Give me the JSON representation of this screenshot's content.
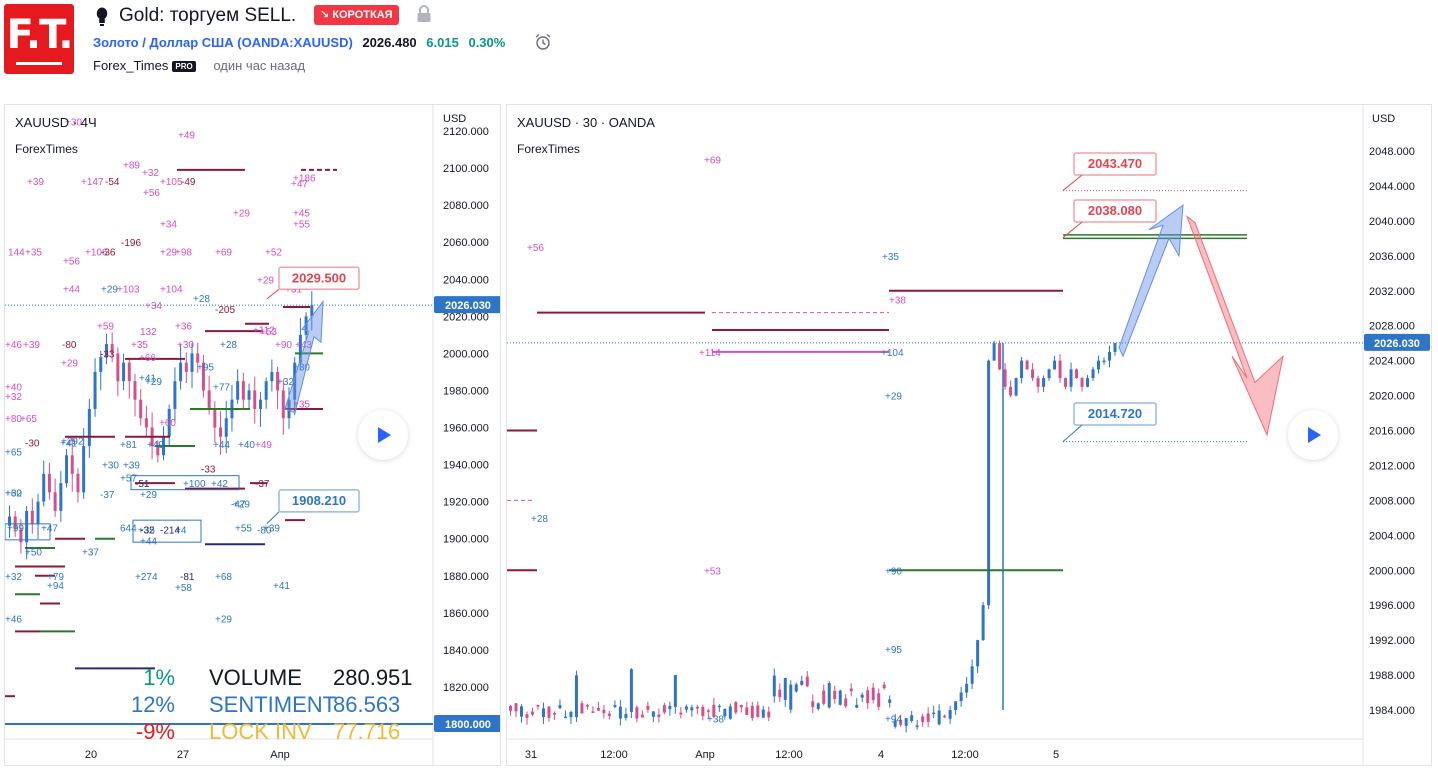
{
  "header": {
    "title": "Gold: торгуем SELL.",
    "badge": "↘ КОРОТКАЯ",
    "symbol_name": "Золото / Доллар США",
    "symbol_code_open": " (",
    "symbol_code": "OANDA:XAUUSD",
    "symbol_code_close": ")",
    "price": "2026.480",
    "change": "6.015",
    "change_pct": "0.30%",
    "author": "Forex_Times",
    "author_badge": "PRO",
    "time_ago": "один час назад",
    "logo_text": "F.T.",
    "icons": [
      "lightbulb-icon",
      "lock-icon",
      "alarm-clock-icon",
      "play-icon"
    ],
    "colors": {
      "brand": "#e5191e",
      "badge": "#f23645",
      "link": "#2962ff",
      "positive": "#089981"
    }
  },
  "stats": {
    "rows": [
      {
        "pct": "1%",
        "label": "VOLUME",
        "value": "280.951",
        "color": "#089981",
        "label_color": "#131722"
      },
      {
        "pct": "12%",
        "label": "SENTIMENT",
        "value": "86.563",
        "color": "#2f75c7",
        "label_color": "#2f75c7"
      },
      {
        "pct": "-9%",
        "label": "LOCK INV",
        "value": "77.716",
        "color": "#e5191e",
        "label_color": "#f0b93a"
      }
    ]
  },
  "chart_data": [
    {
      "type": "candlestick",
      "title": "XAUUSD · 4Ч",
      "subtitle": "ForexTimes",
      "currency": "USD",
      "y_ticks": [
        "2120.000",
        "2100.000",
        "2080.000",
        "2060.000",
        "2040.000",
        "2020.000",
        "2000.000",
        "1980.000",
        "1960.000",
        "1940.000",
        "1920.000",
        "1900.000",
        "1880.000",
        "1860.000",
        "1840.000",
        "1820.000"
      ],
      "y_range": [
        1800,
        2120
      ],
      "x_ticks": [
        "20",
        "27",
        "Апр"
      ],
      "current_price": "2026.030",
      "extra_price_tag": "1800.000",
      "price_labels": [
        {
          "text": "2029.500",
          "value": 2029.5,
          "color": "#e5444f"
        },
        {
          "text": "1908.210",
          "value": 1908.21,
          "color": "#2f75c7"
        }
      ],
      "candles_close": [
        1912,
        1905,
        1898,
        1915,
        1908,
        1920,
        1935,
        1925,
        1915,
        1930,
        1945,
        1935,
        1925,
        1950,
        1970,
        1990,
        1998,
        2005,
        2000,
        1985,
        1995,
        1985,
        1975,
        1965,
        1960,
        1950,
        1945,
        1955,
        1970,
        1985,
        1995,
        1990,
        2000,
        1995,
        1980,
        1970,
        1960,
        1955,
        1965,
        1975,
        1985,
        1975,
        1980,
        1970,
        1975,
        1985,
        1990,
        1980,
        1965,
        1975,
        1995,
        2010,
        2020,
        2026
      ],
      "markers": [
        {
          "t": "+30",
          "c": "#d44fc1"
        },
        {
          "t": "+49",
          "c": "#d44fc1"
        },
        {
          "t": "+89",
          "c": "#d44fc1"
        },
        {
          "t": "+32",
          "c": "#d44fc1"
        },
        {
          "t": "+39",
          "c": "#d44fc1"
        },
        {
          "t": "+147",
          "c": "#d44fc1"
        },
        {
          "t": "-54",
          "c": "#8b1a3a"
        },
        {
          "t": "+105",
          "c": "#d44fc1"
        },
        {
          "t": "-49",
          "c": "#8b1a3a"
        },
        {
          "t": "+56",
          "c": "#d44fc1"
        },
        {
          "t": "+186",
          "c": "#d44fc1"
        },
        {
          "t": "+47",
          "c": "#d44fc1"
        },
        {
          "t": "+29",
          "c": "#d44fc1"
        },
        {
          "t": "+45",
          "c": "#d44fc1"
        },
        {
          "t": "+55",
          "c": "#d44fc1"
        },
        {
          "t": "+34",
          "c": "#d44fc1"
        },
        {
          "t": "-196",
          "c": "#8b1a3a"
        },
        {
          "t": "144",
          "c": "#d44fc1"
        },
        {
          "t": "+35",
          "c": "#d44fc1"
        },
        {
          "t": "+106",
          "c": "#d44fc1"
        },
        {
          "t": "-36",
          "c": "#8b1a3a"
        },
        {
          "t": "+29",
          "c": "#d44fc1"
        },
        {
          "t": "+98",
          "c": "#d44fc1"
        },
        {
          "t": "+69",
          "c": "#d44fc1"
        },
        {
          "t": "+52",
          "c": "#d44fc1"
        },
        {
          "t": "+56",
          "c": "#d44fc1"
        },
        {
          "t": "+29",
          "c": "#d44fc1"
        },
        {
          "t": "+44",
          "c": "#d44fc1"
        },
        {
          "t": "+29",
          "c": "#2f75c7"
        },
        {
          "t": "+103",
          "c": "#d44fc1"
        },
        {
          "t": "+104",
          "c": "#d44fc1"
        },
        {
          "t": "+28",
          "c": "#2f75c7"
        },
        {
          "t": "+31",
          "c": "#d44fc1"
        },
        {
          "t": "+112",
          "c": "#d44fc1"
        },
        {
          "t": "+34",
          "c": "#d44fc1"
        },
        {
          "t": "+59",
          "c": "#d44fc1"
        },
        {
          "t": "+36",
          "c": "#d44fc1"
        },
        {
          "t": "-205",
          "c": "#8b1a3a"
        },
        {
          "t": "132",
          "c": "#d44fc1"
        },
        {
          "t": "+46",
          "c": "#d44fc1"
        },
        {
          "t": "+39",
          "c": "#d44fc1"
        },
        {
          "t": "-80",
          "c": "#8b1a3a"
        },
        {
          "t": "+35",
          "c": "#d44fc1"
        },
        {
          "t": "+30",
          "c": "#d44fc1"
        },
        {
          "t": "+28",
          "c": "#2f75c7"
        },
        {
          "t": "+53",
          "c": "#d44fc1"
        },
        {
          "t": "+90",
          "c": "#d44fc1"
        },
        {
          "t": "+43",
          "c": "#d44fc1"
        },
        {
          "t": "-33",
          "c": "#8b1a3a"
        },
        {
          "t": "+66",
          "c": "#d44fc1"
        },
        {
          "t": "+29",
          "c": "#d44fc1"
        },
        {
          "t": "+95",
          "c": "#2f75c7"
        },
        {
          "t": "+30",
          "c": "#2f75c7"
        },
        {
          "t": "+41",
          "c": "#2f75c7"
        },
        {
          "t": "+29",
          "c": "#2f75c7"
        },
        {
          "t": "+32",
          "c": "#2f75c7"
        },
        {
          "t": "+77",
          "c": "#2f75c7"
        },
        {
          "t": "+60",
          "c": "#d44fc1"
        },
        {
          "t": "+35",
          "c": "#d44fc1"
        },
        {
          "t": "+40",
          "c": "#d44fc1"
        },
        {
          "t": "+32",
          "c": "#d44fc1"
        },
        {
          "t": "+80",
          "c": "#d44fc1"
        },
        {
          "t": "+65",
          "c": "#d44fc1"
        },
        {
          "t": "-30",
          "c": "#8b1a3a"
        },
        {
          "t": "+41",
          "c": "#2f75c7"
        },
        {
          "t": "+81",
          "c": "#2f75c7"
        },
        {
          "t": "+49",
          "c": "#2f75c7"
        },
        {
          "t": "+44",
          "c": "#2f75c7"
        },
        {
          "t": "+40",
          "c": "#2f75c7"
        },
        {
          "t": "+49",
          "c": "#d44fc1"
        },
        {
          "t": "+65",
          "c": "#2f75c7"
        },
        {
          "t": "+30",
          "c": "#2f75c7"
        },
        {
          "t": "+39",
          "c": "#2f75c7"
        },
        {
          "t": "+57",
          "c": "#2f75c7"
        },
        {
          "t": "-33",
          "c": "#8b1a3a"
        },
        {
          "t": "+292",
          "c": "#2f75c7"
        },
        {
          "t": "-51",
          "c": "#2a2a7a"
        },
        {
          "t": "+100",
          "c": "#2f75c7"
        },
        {
          "t": "+42",
          "c": "#2f75c7"
        },
        {
          "t": "-37",
          "c": "#8b1a3a"
        },
        {
          "t": "+62",
          "c": "#2f75c7"
        },
        {
          "t": "-37",
          "c": "#2f75c7"
        },
        {
          "t": "+29",
          "c": "#2f75c7"
        },
        {
          "t": "+29",
          "c": "#2f75c7"
        },
        {
          "t": "-47",
          "c": "#2f75c7"
        },
        {
          "t": "+30",
          "c": "#2f75c7"
        },
        {
          "t": "+35",
          "c": "#2f75c7"
        },
        {
          "t": "+4",
          "c": "#2f75c7"
        },
        {
          "t": "-80",
          "c": "#2f75c7"
        },
        {
          "t": "+99",
          "c": "#2f75c7"
        },
        {
          "t": "+47",
          "c": "#2f75c7"
        },
        {
          "t": "644",
          "c": "#2f75c7"
        },
        {
          "t": "-32",
          "c": "#2a2a7a"
        },
        {
          "t": "-214",
          "c": "#2a2a7a"
        },
        {
          "t": "+55",
          "c": "#2f75c7"
        },
        {
          "t": "+39",
          "c": "#2f75c7"
        },
        {
          "t": "+44",
          "c": "#2f75c7"
        },
        {
          "t": "+50",
          "c": "#2f75c7"
        },
        {
          "t": "+37",
          "c": "#2f75c7"
        },
        {
          "t": "+32",
          "c": "#2f75c7"
        },
        {
          "t": "+79",
          "c": "#2f75c7"
        },
        {
          "t": "+94",
          "c": "#2f75c7"
        },
        {
          "t": "+274",
          "c": "#2f75c7"
        },
        {
          "t": "-81",
          "c": "#2a2a7a"
        },
        {
          "t": "+58",
          "c": "#2f75c7"
        },
        {
          "t": "+68",
          "c": "#2f75c7"
        },
        {
          "t": "+41",
          "c": "#2f75c7"
        },
        {
          "t": "+46",
          "c": "#2f75c7"
        },
        {
          "t": "+29",
          "c": "#2f75c7"
        }
      ]
    },
    {
      "type": "candlestick",
      "title": "XAUUSD · 30 · OANDA",
      "subtitle": "ForexTimes",
      "currency": "USD",
      "y_ticks": [
        "2048.000",
        "2044.000",
        "2040.000",
        "2036.000",
        "2032.000",
        "2028.000",
        "2024.000",
        "2020.000",
        "2016.000",
        "2012.000",
        "2008.000",
        "2004.000",
        "2000.000",
        "1996.000",
        "1992.000",
        "1988.000",
        "1984.000"
      ],
      "y_range": [
        1981,
        2051
      ],
      "x_ticks": [
        "31",
        "12:00",
        "Апр",
        "12:00",
        "4",
        "12:00",
        "5"
      ],
      "current_price": "2026.030",
      "price_labels": [
        {
          "text": "2043.470",
          "value": 2043.47,
          "color": "#e5444f"
        },
        {
          "text": "2038.080",
          "value": 2038.08,
          "color": "#e5444f"
        },
        {
          "text": "2014.720",
          "value": 2014.72,
          "color": "#2f75c7"
        }
      ],
      "markers": [
        {
          "t": "+69",
          "c": "#d44fc1"
        },
        {
          "t": "+56",
          "c": "#d44fc1"
        },
        {
          "t": "+35",
          "c": "#2f75c7"
        },
        {
          "t": "+38",
          "c": "#d44fc1"
        },
        {
          "t": "+114",
          "c": "#d44fc1"
        },
        {
          "t": "+104",
          "c": "#2f75c7"
        },
        {
          "t": "+29",
          "c": "#2f75c7"
        },
        {
          "t": "+28",
          "c": "#2f75c7"
        },
        {
          "t": "+53",
          "c": "#d44fc1"
        },
        {
          "t": "+90",
          "c": "#2f75c7"
        },
        {
          "t": "+95",
          "c": "#2f75c7"
        },
        {
          "t": "+38",
          "c": "#2f75c7"
        },
        {
          "t": "+94",
          "c": "#2f75c7"
        }
      ]
    }
  ]
}
